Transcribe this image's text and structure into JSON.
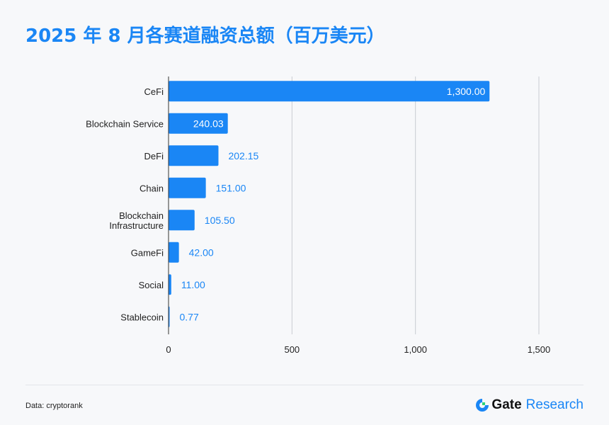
{
  "title": "2025 年 8 月各赛道融资总额（百万美元）",
  "source": "Data: cryptorank",
  "brand": {
    "name": "Gate",
    "suffix": "Research",
    "logo_icon": "gate-logo-icon"
  },
  "colors": {
    "bar": "#1a86f5",
    "title": "#1a86f5",
    "label_inside": "#ffffff",
    "label_outside": "#1a86f5"
  },
  "chart_data": {
    "type": "bar",
    "orientation": "horizontal",
    "title": "2025 年 8 月各赛道融资总额（百万美元）",
    "categories": [
      "CeFi",
      "Blockchain Service",
      "DeFi",
      "Chain",
      "Blockchain Infrastructure",
      "GameFi",
      "Social",
      "Stablecoin"
    ],
    "values": [
      1300.0,
      240.03,
      202.15,
      151.0,
      105.5,
      42.0,
      11.0,
      0.77
    ],
    "data_labels": [
      "1,300.00",
      "240.03",
      "202.15",
      "151.00",
      "105.50",
      "42.00",
      "11.00",
      "0.77"
    ],
    "xlim": [
      0,
      1500
    ],
    "xticks": [
      0,
      500,
      1000,
      1500
    ],
    "xtick_labels": [
      "0",
      "500",
      "1,000",
      "1,500"
    ],
    "grid": "vertical",
    "xlabel": "",
    "ylabel": ""
  }
}
